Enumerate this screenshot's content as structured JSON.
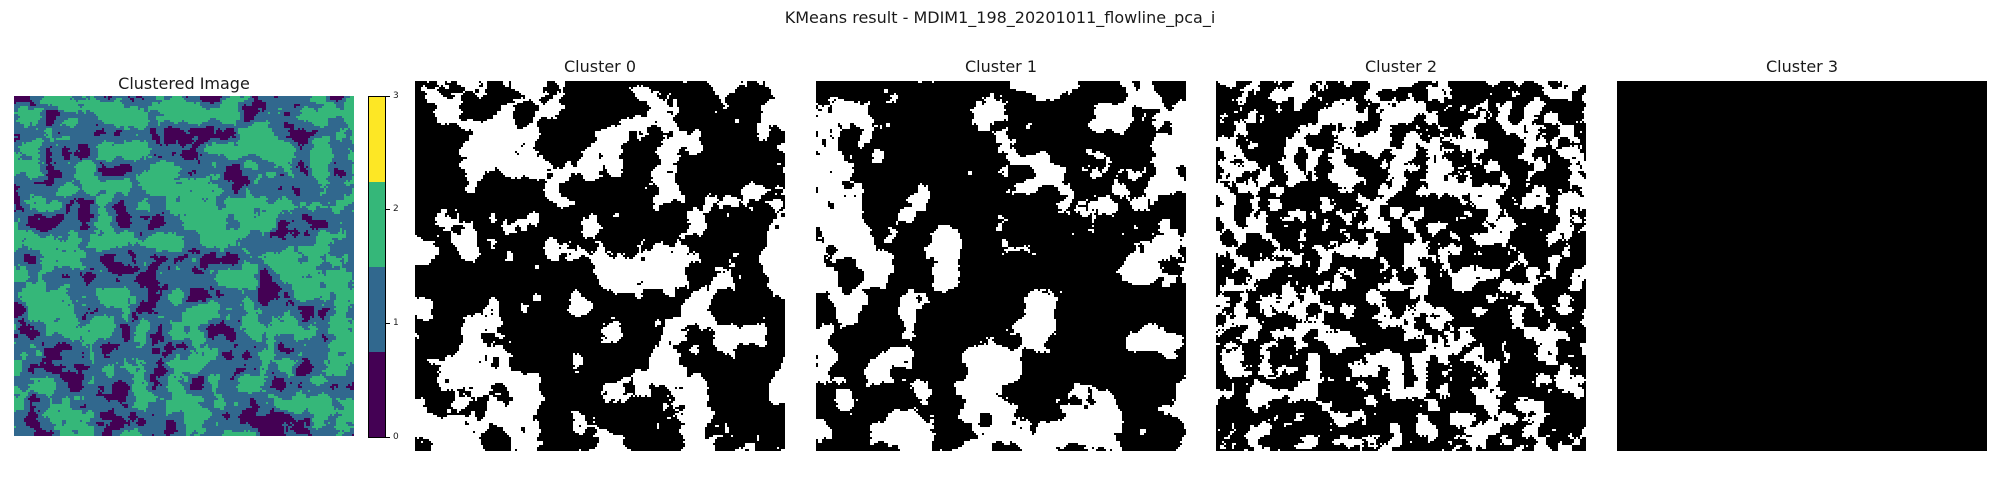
{
  "figure": {
    "title": "KMeans result - MDIM1_198_20201011_flowline_pca_i"
  },
  "panels": [
    {
      "title": "Clustered Image",
      "kind": "clustered"
    },
    {
      "title": "Cluster 0",
      "kind": "mask",
      "cluster": 0,
      "fill_fraction": 0.33
    },
    {
      "title": "Cluster 1",
      "kind": "mask",
      "cluster": 1,
      "fill_fraction": 0.32
    },
    {
      "title": "Cluster 2",
      "kind": "mask",
      "cluster": 2,
      "fill_fraction": 0.38
    },
    {
      "title": "Cluster 3",
      "kind": "mask",
      "cluster": 3,
      "fill_fraction": 0.0
    }
  ],
  "colorbar": {
    "ticks": [
      "0",
      "1",
      "2",
      "3"
    ],
    "colors": [
      "#440154",
      "#31688e",
      "#35b779",
      "#fde725"
    ]
  },
  "colors": {
    "mask_on": "#ffffff",
    "mask_off": "#000000"
  }
}
